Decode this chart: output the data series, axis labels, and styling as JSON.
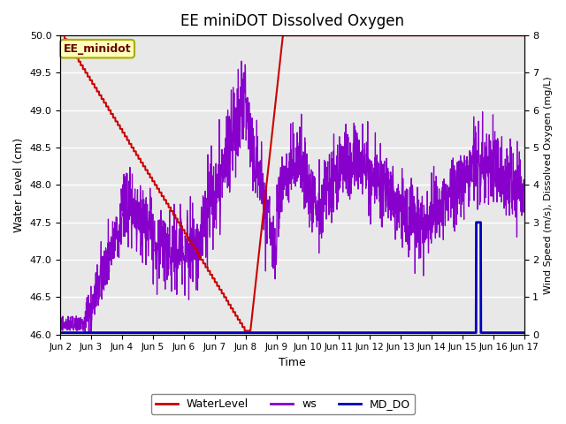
{
  "title": "EE miniDOT Dissolved Oxygen",
  "xlabel": "Time",
  "ylabel_left": "Water Level (cm)",
  "ylabel_right": "Wind Speed (m/s), Dissolved Oxygen (mg/L)",
  "annotation": "EE_minidot",
  "ylim_left": [
    46.0,
    50.0
  ],
  "ylim_right": [
    0.0,
    8.0
  ],
  "yticks_left": [
    46.0,
    46.5,
    47.0,
    47.5,
    48.0,
    48.5,
    49.0,
    49.5,
    50.0
  ],
  "yticks_right": [
    0.0,
    1.0,
    2.0,
    3.0,
    4.0,
    5.0,
    6.0,
    7.0,
    8.0
  ],
  "xtick_labels": [
    "Jun 2",
    "Jun 3",
    "Jun 4",
    "Jun 5",
    "Jun 6",
    "Jun 7",
    "Jun 8",
    "Jun 9",
    "Jun 10",
    "Jun 11",
    "Jun 12",
    "Jun 13",
    "Jun 14",
    "Jun 15",
    "Jun 16",
    "Jun 17"
  ],
  "plot_bg_color": "#e8e8e8",
  "grid_color": "#ffffff",
  "wl_color": "#cc0000",
  "ws_color": "#8800cc",
  "do_color": "#0000bb",
  "wl_lw": 1.5,
  "ws_lw": 0.9,
  "do_lw": 2.0,
  "legend_labels": [
    "WaterLevel",
    "ws",
    "MD_DO"
  ],
  "annot_facecolor": "#ffffbb",
  "annot_edgecolor": "#aaaa00"
}
